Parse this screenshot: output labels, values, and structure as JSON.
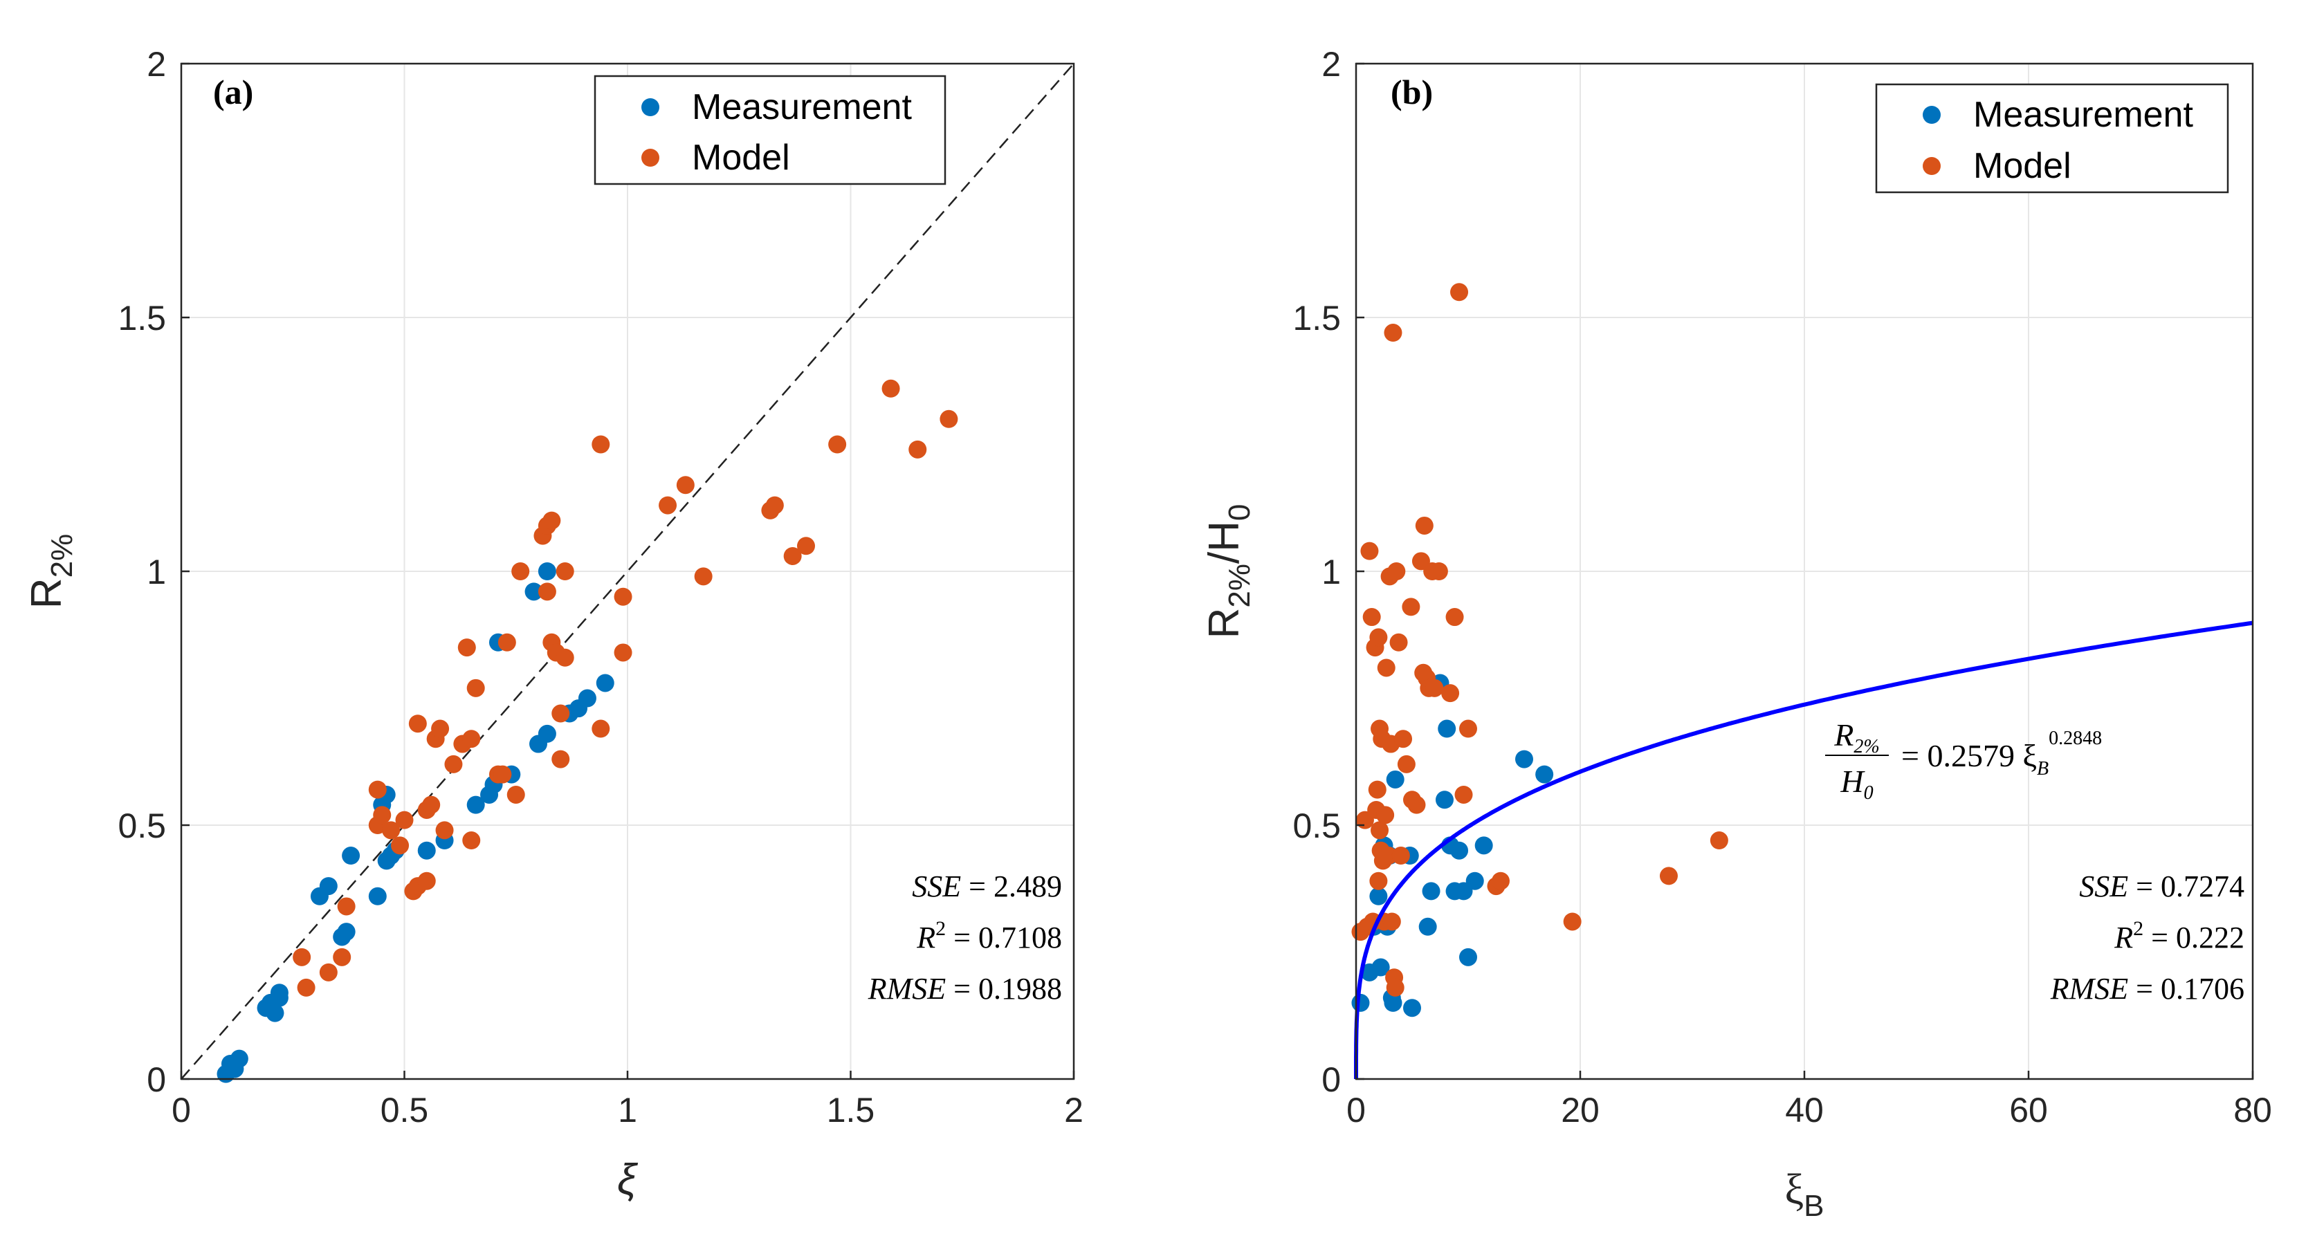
{
  "chart_data": [
    {
      "type": "scatter",
      "panel_label": "(a)",
      "xlabel": "ξ",
      "ylabel_main": "R",
      "ylabel_sub": "2%",
      "xlim": [
        0,
        2
      ],
      "ylim": [
        0,
        2
      ],
      "xticks": [
        0,
        0.5,
        1,
        1.5,
        2
      ],
      "yticks": [
        0,
        0.5,
        1,
        1.5,
        2
      ],
      "xtick_labels": [
        "0",
        "0.5",
        "1",
        "1.5",
        "2"
      ],
      "ytick_labels": [
        "0",
        "0.5",
        "1",
        "1.5",
        "2"
      ],
      "grid": true,
      "legend_position": "top-right",
      "reference_line": "y = x (dashed)",
      "series": [
        {
          "name": "Measurement",
          "color": "#0072BD",
          "points": [
            [
              0.1,
              0.01
            ],
            [
              0.11,
              0.03
            ],
            [
              0.12,
              0.02
            ],
            [
              0.13,
              0.04
            ],
            [
              0.19,
              0.14
            ],
            [
              0.2,
              0.15
            ],
            [
              0.21,
              0.13
            ],
            [
              0.22,
              0.16
            ],
            [
              0.22,
              0.17
            ],
            [
              0.31,
              0.36
            ],
            [
              0.33,
              0.38
            ],
            [
              0.36,
              0.28
            ],
            [
              0.37,
              0.29
            ],
            [
              0.38,
              0.44
            ],
            [
              0.44,
              0.36
            ],
            [
              0.45,
              0.54
            ],
            [
              0.46,
              0.43
            ],
            [
              0.46,
              0.56
            ],
            [
              0.47,
              0.44
            ],
            [
              0.48,
              0.45
            ],
            [
              0.55,
              0.45
            ],
            [
              0.59,
              0.47
            ],
            [
              0.66,
              0.54
            ],
            [
              0.69,
              0.56
            ],
            [
              0.7,
              0.58
            ],
            [
              0.71,
              0.86
            ],
            [
              0.74,
              0.6
            ],
            [
              0.79,
              0.96
            ],
            [
              0.8,
              0.66
            ],
            [
              0.82,
              0.68
            ],
            [
              0.82,
              1.0
            ],
            [
              0.87,
              0.72
            ],
            [
              0.89,
              0.73
            ],
            [
              0.91,
              0.75
            ],
            [
              0.95,
              0.78
            ]
          ]
        },
        {
          "name": "Model",
          "color": "#D95319",
          "points": [
            [
              0.27,
              0.24
            ],
            [
              0.28,
              0.18
            ],
            [
              0.33,
              0.21
            ],
            [
              0.36,
              0.24
            ],
            [
              0.37,
              0.34
            ],
            [
              0.44,
              0.5
            ],
            [
              0.44,
              0.57
            ],
            [
              0.45,
              0.52
            ],
            [
              0.47,
              0.49
            ],
            [
              0.49,
              0.46
            ],
            [
              0.5,
              0.51
            ],
            [
              0.52,
              0.37
            ],
            [
              0.53,
              0.38
            ],
            [
              0.53,
              0.7
            ],
            [
              0.55,
              0.39
            ],
            [
              0.55,
              0.53
            ],
            [
              0.56,
              0.54
            ],
            [
              0.57,
              0.67
            ],
            [
              0.58,
              0.69
            ],
            [
              0.59,
              0.49
            ],
            [
              0.61,
              0.62
            ],
            [
              0.63,
              0.66
            ],
            [
              0.64,
              0.85
            ],
            [
              0.65,
              0.67
            ],
            [
              0.65,
              0.47
            ],
            [
              0.66,
              0.77
            ],
            [
              0.71,
              0.6
            ],
            [
              0.72,
              0.6
            ],
            [
              0.73,
              0.86
            ],
            [
              0.75,
              0.56
            ],
            [
              0.76,
              1.0
            ],
            [
              0.81,
              1.07
            ],
            [
              0.82,
              0.96
            ],
            [
              0.82,
              1.09
            ],
            [
              0.83,
              1.1
            ],
            [
              0.83,
              0.86
            ],
            [
              0.84,
              0.84
            ],
            [
              0.85,
              0.63
            ],
            [
              0.85,
              0.72
            ],
            [
              0.86,
              0.83
            ],
            [
              0.86,
              1.0
            ],
            [
              0.94,
              1.25
            ],
            [
              0.94,
              0.69
            ],
            [
              0.99,
              0.95
            ],
            [
              0.99,
              0.84
            ],
            [
              1.09,
              1.13
            ],
            [
              1.13,
              1.17
            ],
            [
              1.17,
              0.99
            ],
            [
              1.32,
              1.12
            ],
            [
              1.33,
              1.13
            ],
            [
              1.37,
              1.03
            ],
            [
              1.4,
              1.05
            ],
            [
              1.47,
              1.25
            ],
            [
              1.59,
              1.36
            ],
            [
              1.65,
              1.24
            ],
            [
              1.72,
              1.3
            ]
          ]
        }
      ],
      "stats": {
        "sse": "2.489",
        "r2": "0.7108",
        "rmse": "0.1988"
      }
    },
    {
      "type": "scatter",
      "panel_label": "(b)",
      "xlabel_main": "ξ",
      "xlabel_sub": "B",
      "ylabel_main": "R",
      "ylabel_sub": "2%",
      "ylabel_suffix": "/H",
      "ylabel_suffix_sub": "0",
      "xlim": [
        0,
        80
      ],
      "ylim": [
        0,
        2
      ],
      "xticks": [
        0,
        20,
        40,
        60,
        80
      ],
      "yticks": [
        0,
        0.5,
        1,
        1.5,
        2
      ],
      "xtick_labels": [
        "0",
        "20",
        "40",
        "60",
        "80"
      ],
      "ytick_labels": [
        "0",
        "0.5",
        "1",
        "1.5",
        "2"
      ],
      "grid": true,
      "legend_position": "top-right",
      "fit": {
        "coefficient": 0.2579,
        "exponent": 0.2848,
        "color": "#0000FF"
      },
      "equation": {
        "num_main": "R",
        "num_sub": "2%",
        "den_main": "H",
        "den_sub": "0",
        "rhs": "= 0.2579 ξ",
        "rhs_sub": "B",
        "rhs_exp": "0.2848"
      },
      "series": [
        {
          "name": "Measurement",
          "color": "#0072BD",
          "points": [
            [
              0.4,
              0.15
            ],
            [
              1.2,
              0.21
            ],
            [
              1.6,
              0.3
            ],
            [
              2.0,
              0.36
            ],
            [
              2.2,
              0.22
            ],
            [
              2.5,
              0.46
            ],
            [
              2.8,
              0.3
            ],
            [
              3.0,
              0.44
            ],
            [
              3.2,
              0.16
            ],
            [
              3.3,
              0.15
            ],
            [
              3.5,
              0.59
            ],
            [
              4.8,
              0.44
            ],
            [
              5.0,
              0.14
            ],
            [
              6.4,
              0.3
            ],
            [
              6.7,
              0.37
            ],
            [
              7.5,
              0.78
            ],
            [
              7.9,
              0.55
            ],
            [
              8.1,
              0.69
            ],
            [
              8.4,
              0.46
            ],
            [
              8.8,
              0.37
            ],
            [
              9.2,
              0.45
            ],
            [
              9.6,
              0.37
            ],
            [
              10.0,
              0.24
            ],
            [
              10.6,
              0.39
            ],
            [
              11.4,
              0.46
            ],
            [
              15.0,
              0.63
            ],
            [
              16.8,
              0.6
            ]
          ]
        },
        {
          "name": "Model",
          "color": "#D95319",
          "points": [
            [
              0.4,
              0.29
            ],
            [
              0.8,
              0.51
            ],
            [
              1.0,
              0.3
            ],
            [
              1.2,
              1.04
            ],
            [
              1.4,
              0.91
            ],
            [
              1.5,
              0.31
            ],
            [
              1.7,
              0.85
            ],
            [
              1.8,
              0.53
            ],
            [
              1.9,
              0.57
            ],
            [
              2.0,
              0.87
            ],
            [
              2.0,
              0.39
            ],
            [
              2.1,
              0.69
            ],
            [
              2.1,
              0.49
            ],
            [
              2.2,
              0.45
            ],
            [
              2.3,
              0.67
            ],
            [
              2.4,
              0.43
            ],
            [
              2.5,
              0.31
            ],
            [
              2.6,
              0.52
            ],
            [
              2.7,
              0.81
            ],
            [
              2.9,
              0.44
            ],
            [
              3.0,
              0.99
            ],
            [
              3.1,
              0.66
            ],
            [
              3.2,
              0.31
            ],
            [
              3.3,
              1.47
            ],
            [
              3.4,
              0.2
            ],
            [
              3.5,
              0.18
            ],
            [
              3.6,
              1.0
            ],
            [
              3.8,
              0.86
            ],
            [
              4.0,
              0.44
            ],
            [
              4.2,
              0.67
            ],
            [
              4.5,
              0.62
            ],
            [
              4.9,
              0.93
            ],
            [
              5.0,
              0.55
            ],
            [
              5.4,
              0.54
            ],
            [
              5.8,
              1.02
            ],
            [
              6.0,
              0.8
            ],
            [
              6.1,
              1.09
            ],
            [
              6.3,
              0.79
            ],
            [
              6.5,
              0.77
            ],
            [
              6.8,
              1.0
            ],
            [
              7.0,
              0.77
            ],
            [
              7.4,
              1.0
            ],
            [
              8.4,
              0.76
            ],
            [
              8.8,
              0.91
            ],
            [
              9.2,
              1.55
            ],
            [
              9.6,
              0.56
            ],
            [
              10.0,
              0.69
            ],
            [
              12.5,
              0.38
            ],
            [
              12.9,
              0.39
            ],
            [
              19.3,
              0.31
            ],
            [
              27.9,
              0.4
            ],
            [
              32.4,
              0.47
            ]
          ]
        }
      ],
      "stats": {
        "sse": "0.7274",
        "r2": "0.222",
        "rmse": "0.1706"
      }
    }
  ]
}
